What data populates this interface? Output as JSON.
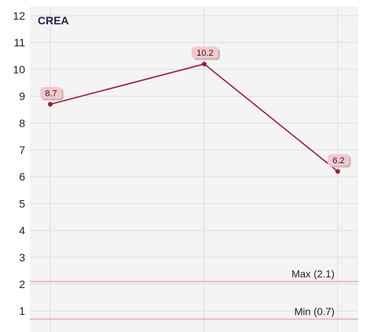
{
  "chart_data": {
    "type": "line",
    "title": "CREA",
    "x": [
      "",
      "",
      ""
    ],
    "series": [
      {
        "values": [
          8.7,
          10.2,
          6.2
        ],
        "data_labels": [
          "8.7",
          "10.2",
          "6.2"
        ]
      }
    ],
    "ylim": [
      0.3,
      12
    ],
    "yticks": [
      "1",
      "2",
      "3",
      "4",
      "5",
      "6",
      "7",
      "8",
      "9",
      "10",
      "11",
      "12"
    ],
    "reference_lines": [
      {
        "label": "Max (2.1)",
        "value": 2.1
      },
      {
        "label": "Min (0.7)",
        "value": 0.7
      }
    ],
    "grid": true,
    "colors": {
      "line": "#a01c3c",
      "label_bg": "#f6c6cc",
      "label_shadow": "#b9b9b9",
      "grid": "#e4e4e4",
      "plot_bg": "#f4f4f4",
      "ref_line": "#f0a8b0",
      "title": "#1f1f4f"
    }
  }
}
